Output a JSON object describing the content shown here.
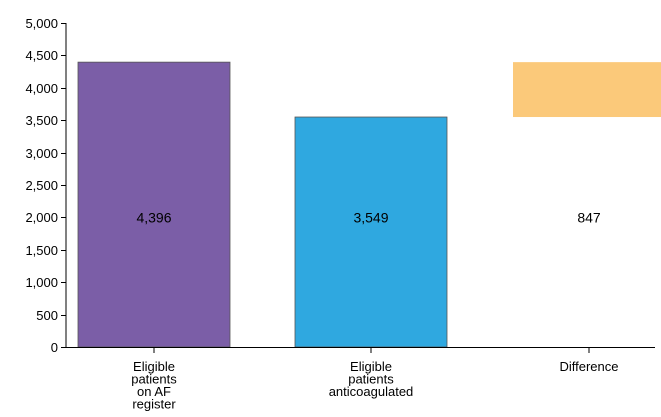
{
  "chart_data": {
    "type": "bar",
    "subtype": "waterfall",
    "title": "",
    "xlabel": "",
    "ylabel": "",
    "ylim": [
      0,
      5000
    ],
    "yticks": [
      0,
      500,
      1000,
      1500,
      2000,
      2500,
      3000,
      3500,
      4000,
      4500,
      5000
    ],
    "ytick_labels": [
      "0",
      "500",
      "1,000",
      "1,500",
      "2,000",
      "2,500",
      "3,000",
      "3,500",
      "4,000",
      "4,500",
      "5,000"
    ],
    "grid": false,
    "legend": "none",
    "bars": [
      {
        "category_lines": [
          "Eligible",
          "patients",
          "on AF",
          "register"
        ],
        "base": 0,
        "top": 4396,
        "value": 4396,
        "label": "4,396",
        "color": "#7b5ea7"
      },
      {
        "category_lines": [
          "Eligible",
          "patients",
          "anticoagulated"
        ],
        "base": 0,
        "top": 3549,
        "value": 3549,
        "label": "3,549",
        "color": "#2fa8e0"
      },
      {
        "category_lines": [
          "Difference"
        ],
        "base": 3549,
        "top": 4396,
        "value": 847,
        "label": "847",
        "color": "#fbc97a"
      }
    ]
  }
}
